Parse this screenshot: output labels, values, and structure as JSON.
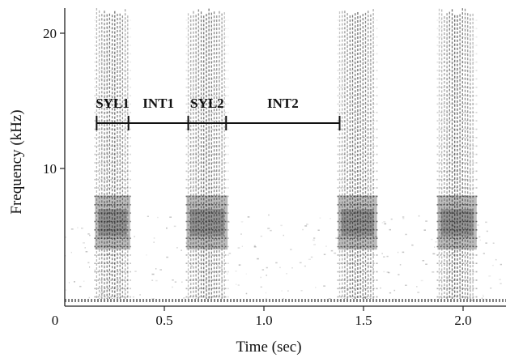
{
  "chart_data": {
    "type": "heatmap",
    "title": "",
    "xlabel": "Time (sec)",
    "ylabel": "Frequency (kHz)",
    "xlim": [
      0,
      2.25
    ],
    "ylim": [
      0,
      22
    ],
    "x_ticks": [
      {
        "value": 0,
        "label": "0"
      },
      {
        "value": 0.5,
        "label": "0.5"
      },
      {
        "value": 1.0,
        "label": "1.0"
      },
      {
        "value": 1.5,
        "label": "1.5"
      },
      {
        "value": 2.0,
        "label": "2.0"
      }
    ],
    "y_ticks": [
      {
        "value": 10,
        "label": "10"
      },
      {
        "value": 20,
        "label": "20"
      }
    ],
    "syllables": [
      {
        "start": 0.16,
        "end": 0.32
      },
      {
        "start": 0.62,
        "end": 0.81
      },
      {
        "start": 1.38,
        "end": 1.56
      },
      {
        "start": 1.88,
        "end": 2.06
      }
    ],
    "annotation_segments": [
      {
        "label": "SYL1",
        "start": 0.16,
        "end": 0.32
      },
      {
        "label": "INT1",
        "start": 0.32,
        "end": 0.62
      },
      {
        "label": "SYL2",
        "start": 0.62,
        "end": 0.81
      },
      {
        "label": "INT2",
        "start": 0.81,
        "end": 1.38
      }
    ]
  }
}
